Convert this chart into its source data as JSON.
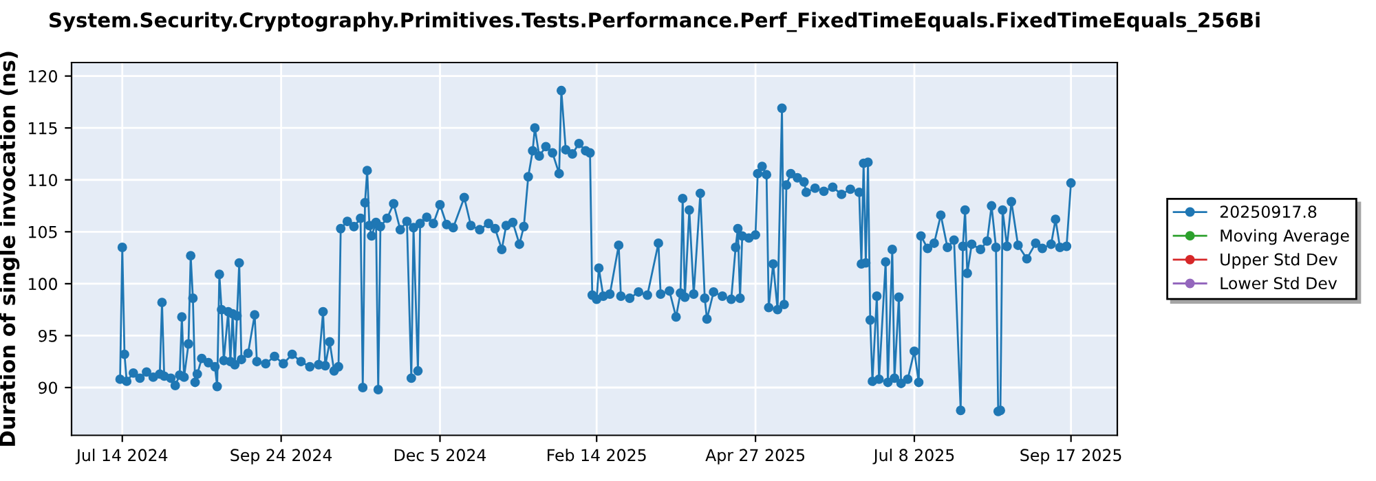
{
  "chart_data": {
    "type": "line",
    "title": "System.Security.Cryptography.Primitives.Tests.Performance.Perf_FixedTimeEquals.FixedTimeEquals_256Bi",
    "ylabel": "Duration of single invocation (ns)",
    "xlim": [
      "2024-06-21",
      "2025-10-08"
    ],
    "ylim": [
      85.4,
      121.3
    ],
    "xticks": [
      {
        "value": "2024-07-14",
        "label": "Jul 14 2024"
      },
      {
        "value": "2024-09-24",
        "label": "Sep 24 2024"
      },
      {
        "value": "2024-12-05",
        "label": "Dec 5 2024"
      },
      {
        "value": "2025-02-14",
        "label": "Feb 14 2025"
      },
      {
        "value": "2025-04-27",
        "label": "Apr 27 2025"
      },
      {
        "value": "2025-07-08",
        "label": "Jul 8 2025"
      },
      {
        "value": "2025-09-17",
        "label": "Sep 17 2025"
      }
    ],
    "yticks": [
      90,
      95,
      100,
      105,
      110,
      115,
      120
    ],
    "grid": true,
    "legend": "right",
    "marker": "circle",
    "line_style": "solid",
    "series": [
      {
        "name": "20250917.8",
        "color": "#1f77b4",
        "x": [
          "2024-07-13",
          "2024-07-14",
          "2024-07-15",
          "2024-07-16",
          "2024-07-19",
          "2024-07-22",
          "2024-07-25",
          "2024-07-28",
          "2024-07-31",
          "2024-08-01",
          "2024-08-02",
          "2024-08-05",
          "2024-08-07",
          "2024-08-09",
          "2024-08-10",
          "2024-08-11",
          "2024-08-13",
          "2024-08-14",
          "2024-08-15",
          "2024-08-16",
          "2024-08-17",
          "2024-08-19",
          "2024-08-22",
          "2024-08-25",
          "2024-08-26",
          "2024-08-27",
          "2024-08-28",
          "2024-08-29",
          "2024-08-31",
          "2024-09-01",
          "2024-09-02",
          "2024-09-03",
          "2024-09-04",
          "2024-09-05",
          "2024-09-06",
          "2024-09-09",
          "2024-09-12",
          "2024-09-13",
          "2024-09-17",
          "2024-09-21",
          "2024-09-25",
          "2024-09-29",
          "2024-10-03",
          "2024-10-07",
          "2024-10-11",
          "2024-10-13",
          "2024-10-14",
          "2024-10-16",
          "2024-10-18",
          "2024-10-20",
          "2024-10-21",
          "2024-10-24",
          "2024-10-27",
          "2024-10-30",
          "2024-10-31",
          "2024-11-01",
          "2024-11-02",
          "2024-11-03",
          "2024-11-04",
          "2024-11-06",
          "2024-11-07",
          "2024-11-08",
          "2024-11-11",
          "2024-11-14",
          "2024-11-17",
          "2024-11-20",
          "2024-11-22",
          "2024-11-23",
          "2024-11-25",
          "2024-11-26",
          "2024-11-29",
          "2024-12-02",
          "2024-12-05",
          "2024-12-08",
          "2024-12-11",
          "2024-12-16",
          "2024-12-19",
          "2024-12-23",
          "2024-12-27",
          "2024-12-30",
          "2025-01-02",
          "2025-01-04",
          "2025-01-07",
          "2025-01-10",
          "2025-01-12",
          "2025-01-14",
          "2025-01-16",
          "2025-01-17",
          "2025-01-19",
          "2025-01-22",
          "2025-01-25",
          "2025-01-28",
          "2025-01-29",
          "2025-01-31",
          "2025-02-03",
          "2025-02-06",
          "2025-02-09",
          "2025-02-11",
          "2025-02-12",
          "2025-02-14",
          "2025-02-15",
          "2025-02-17",
          "2025-02-20",
          "2025-02-24",
          "2025-02-25",
          "2025-03-01",
          "2025-03-05",
          "2025-03-09",
          "2025-03-14",
          "2025-03-15",
          "2025-03-19",
          "2025-03-22",
          "2025-03-24",
          "2025-03-25",
          "2025-03-26",
          "2025-03-28",
          "2025-03-30",
          "2025-04-02",
          "2025-04-04",
          "2025-04-05",
          "2025-04-08",
          "2025-04-12",
          "2025-04-16",
          "2025-04-18",
          "2025-04-19",
          "2025-04-20",
          "2025-04-21",
          "2025-04-24",
          "2025-04-27",
          "2025-04-28",
          "2025-04-30",
          "2025-05-02",
          "2025-05-03",
          "2025-05-05",
          "2025-05-07",
          "2025-05-09",
          "2025-05-10",
          "2025-05-11",
          "2025-05-13",
          "2025-05-16",
          "2025-05-19",
          "2025-05-20",
          "2025-05-24",
          "2025-05-28",
          "2025-06-01",
          "2025-06-05",
          "2025-06-09",
          "2025-06-13",
          "2025-06-14",
          "2025-06-15",
          "2025-06-16",
          "2025-06-17",
          "2025-06-18",
          "2025-06-19",
          "2025-06-21",
          "2025-06-22",
          "2025-06-25",
          "2025-06-26",
          "2025-06-28",
          "2025-06-29",
          "2025-07-01",
          "2025-07-02",
          "2025-07-05",
          "2025-07-08",
          "2025-07-10",
          "2025-07-11",
          "2025-07-14",
          "2025-07-17",
          "2025-07-20",
          "2025-07-23",
          "2025-07-26",
          "2025-07-29",
          "2025-07-30",
          "2025-07-31",
          "2025-08-01",
          "2025-08-03",
          "2025-08-07",
          "2025-08-10",
          "2025-08-12",
          "2025-08-14",
          "2025-08-15",
          "2025-08-16",
          "2025-08-17",
          "2025-08-19",
          "2025-08-21",
          "2025-08-24",
          "2025-08-28",
          "2025-09-01",
          "2025-09-04",
          "2025-09-08",
          "2025-09-10",
          "2025-09-12",
          "2025-09-15",
          "2025-09-17"
        ],
        "values": [
          90.8,
          103.5,
          93.2,
          90.6,
          91.4,
          90.9,
          91.5,
          91.0,
          91.3,
          98.2,
          91.1,
          90.9,
          90.2,
          91.2,
          96.8,
          91.0,
          94.2,
          102.7,
          98.6,
          90.5,
          91.3,
          92.8,
          92.4,
          92.0,
          90.1,
          100.9,
          97.5,
          92.6,
          97.3,
          92.5,
          97.1,
          92.2,
          96.9,
          102.0,
          92.7,
          93.3,
          97.0,
          92.5,
          92.3,
          93.0,
          92.3,
          93.2,
          92.5,
          92.0,
          92.2,
          97.3,
          92.1,
          94.4,
          91.6,
          92.0,
          105.3,
          106.0,
          105.5,
          106.3,
          90.0,
          107.8,
          110.9,
          105.6,
          104.6,
          105.9,
          89.8,
          105.5,
          106.3,
          107.7,
          105.2,
          106.0,
          90.9,
          105.4,
          91.6,
          105.8,
          106.4,
          105.8,
          107.6,
          105.7,
          105.4,
          108.3,
          105.6,
          105.2,
          105.8,
          105.3,
          103.3,
          105.6,
          105.9,
          103.8,
          105.5,
          110.3,
          112.8,
          115.0,
          112.3,
          113.2,
          112.6,
          110.6,
          118.6,
          112.9,
          112.5,
          113.5,
          112.8,
          112.6,
          98.9,
          98.5,
          101.5,
          98.8,
          99.0,
          103.7,
          98.8,
          98.6,
          99.2,
          98.9,
          103.9,
          99.0,
          99.3,
          96.8,
          99.1,
          108.2,
          98.7,
          107.1,
          99.0,
          108.7,
          98.6,
          96.6,
          99.2,
          98.8,
          98.5,
          103.5,
          105.3,
          98.6,
          104.6,
          104.4,
          104.7,
          110.6,
          111.3,
          110.5,
          97.7,
          101.9,
          97.5,
          116.9,
          98.0,
          109.5,
          110.6,
          110.2,
          109.8,
          108.8,
          109.2,
          108.9,
          109.3,
          108.6,
          109.1,
          108.8,
          101.9,
          111.6,
          102.0,
          111.7,
          96.5,
          90.6,
          98.8,
          90.8,
          102.1,
          90.5,
          103.3,
          90.9,
          98.7,
          90.4,
          90.8,
          93.5,
          90.5,
          104.6,
          103.4,
          103.9,
          106.6,
          103.5,
          104.2,
          87.8,
          103.6,
          107.1,
          101.0,
          103.8,
          103.3,
          104.1,
          107.5,
          103.5,
          87.7,
          87.8,
          107.1,
          103.6,
          107.9,
          103.7,
          102.4,
          103.9,
          103.4,
          103.8,
          106.2,
          103.5,
          103.6,
          109.7
        ]
      },
      {
        "name": "Moving Average",
        "color": "#2ca02c"
      },
      {
        "name": "Upper Std Dev",
        "color": "#d62728"
      },
      {
        "name": "Lower Std Dev",
        "color": "#9467bd"
      }
    ]
  }
}
